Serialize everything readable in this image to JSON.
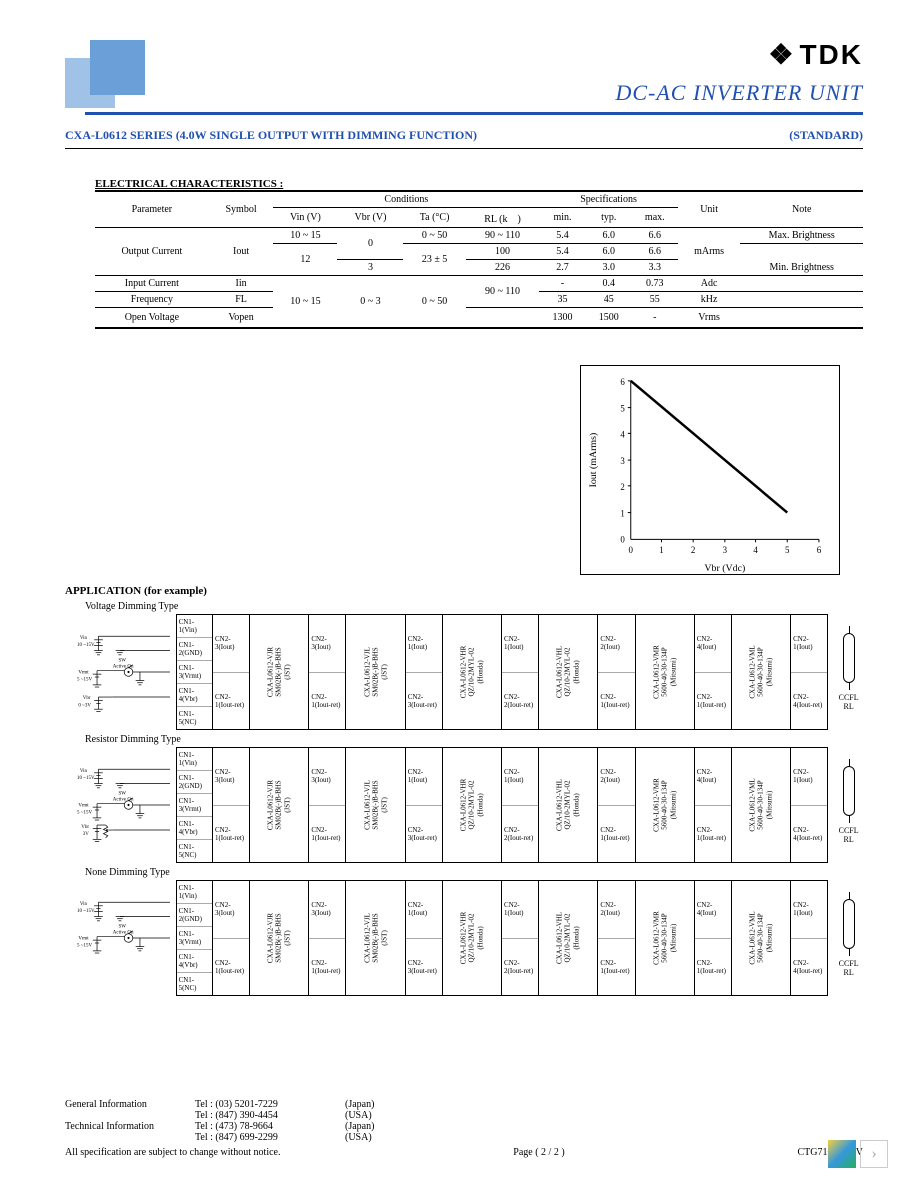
{
  "brand": "TDK",
  "main_title": "DC-AC INVERTER UNIT",
  "series_title": "CXA-L0612 SERIES (4.0W SINGLE OUTPUT WITH DIMMING FUNCTION)",
  "standard_label": "(STANDARD)",
  "elec_heading": "ELECTRICAL CHARACTERISTICS :",
  "table_headers": {
    "parameter": "Parameter",
    "symbol": "Symbol",
    "conditions": "Conditions",
    "specifications": "Specifications",
    "unit": "Unit",
    "note": "Note",
    "vin": "Vin (V)",
    "vbr": "Vbr (V)",
    "ta": "Ta (°C)",
    "rl": "RL (k　)",
    "min": "min.",
    "typ": "typ.",
    "max": "max."
  },
  "rows": [
    {
      "param": "Output Current",
      "sym": "Iout",
      "vin": "10 ~ 15",
      "vbr": "0",
      "ta": "0 ~ 50",
      "rl": "90 ~ 110",
      "min": "5.4",
      "typ": "6.0",
      "max": "6.6",
      "unit": "mArms",
      "note": "Max. Brightness"
    },
    {
      "param": "",
      "sym": "",
      "vin": "12",
      "vbr": "",
      "ta": "23 ± 5",
      "rl": "100",
      "min": "5.4",
      "typ": "6.0",
      "max": "6.6",
      "unit": "",
      "note": ""
    },
    {
      "param": "",
      "sym": "",
      "vin": "",
      "vbr": "3",
      "ta": "",
      "rl": "226",
      "min": "2.7",
      "typ": "3.0",
      "max": "3.3",
      "unit": "",
      "note": "Min. Brightness"
    },
    {
      "param": "Input Current",
      "sym": "Iin",
      "vin": "",
      "vbr": "",
      "ta": "",
      "rl": "",
      "min": "-",
      "typ": "0.4",
      "max": "0.73",
      "unit": "Adc",
      "note": ""
    },
    {
      "param": "Frequency",
      "sym": "FL",
      "vin": "10 ~ 15",
      "vbr": "0 ~ 3",
      "ta": "0 ~ 50",
      "rl": "90 ~ 110",
      "min": "35",
      "typ": "45",
      "max": "55",
      "unit": "kHz",
      "note": ""
    },
    {
      "param": "Open Voltage",
      "sym": "Vopen",
      "vin": "",
      "vbr": "",
      "ta": "",
      "rl": "　",
      "min": "1300",
      "typ": "1500",
      "max": "-",
      "unit": "Vrms",
      "note": ""
    }
  ],
  "chart": {
    "xlabel": "Vbr (Vdc)",
    "ylabel": "Iout (mArms)",
    "xlim": [
      0,
      6
    ],
    "ylim": [
      0,
      6
    ],
    "xticks": [
      0,
      1,
      2,
      3,
      4,
      5,
      6
    ],
    "yticks": [
      1,
      2,
      3,
      4,
      5,
      6
    ],
    "line": {
      "x": [
        0,
        5
      ],
      "y": [
        6,
        1
      ]
    },
    "line_color": "#000000",
    "line_width": 2.5,
    "axis_color": "#000000",
    "tick_fontsize": 9,
    "label_fontsize": 10
  },
  "app_heading": "APPLICATION (for example)",
  "dimming_types": [
    "Voltage Dimming Type",
    "Resistor Dimming Type",
    "None Dimming Type"
  ],
  "circuit_labels": {
    "vin": "Vin",
    "vin_range": "10 ~15V",
    "sw": "SW",
    "active": "Active On",
    "vrmt": "Vrmt",
    "vrmt_range": "5 ~15V",
    "vbr": "Vbr",
    "vbr_range": "0 ~3V",
    "vbr_fixed": "3V"
  },
  "conn_in_pins": [
    "CN1-1(Vin)",
    "CN1-2(GND)",
    "CN1-3(Vrmt)",
    "CN1-4(Vbr)",
    "CN1-5(NC)"
  ],
  "conn_out_top": "CN2-3(Iout)",
  "conn_out_bot": "CN2-1(Iout-ret)",
  "models": [
    {
      "name": "CXA-L0612-VJR",
      "conn": "SM02B(-)B-BHS",
      "mfr": "(JST)",
      "out_top": "CN2-3(Iout)",
      "out_bot": "CN2-1(Iout-ret)"
    },
    {
      "name": "CXA-L0612-VJL",
      "conn": "SM02B(-)B-BHS",
      "mfr": "(JST)",
      "out_top": "CN2-1(Iout)",
      "out_bot": "CN2-3(Iout-ret)"
    },
    {
      "name": "CXA-L0612-VHR",
      "conn": "QZ/10-2MYL-02",
      "mfr": "(Honda)",
      "out_top": "CN2-1(Iout)",
      "out_bot": "CN2-2(Iout-ret)"
    },
    {
      "name": "CXA-L0612-VHL",
      "conn": "QZ/10-2MYL-02",
      "mfr": "(Honda)",
      "out_top": "CN2-2(Iout)",
      "out_bot": "CN2-1(Iout-ret)"
    },
    {
      "name": "CXA-L0612-VMR",
      "conn": "5600-40-30-134P",
      "mfr": "(Mitsumi)",
      "out_top": "CN2-4(Iout)",
      "out_bot": "CN2-1(Iout-ret)"
    },
    {
      "name": "CXA-L0612-VML",
      "conn": "5600-40-30-134P",
      "mfr": "(Mitsumi)",
      "out_top": "CN2-1(Iout)",
      "out_bot": "CN2-4(Iout-ret)"
    }
  ],
  "ccfl_label": "CCFL",
  "rl_label": "RL",
  "footer": {
    "general": "General Information",
    "technical": "Technical Information",
    "tels": [
      {
        "num": "Tel : (03) 5201-7229",
        "loc": "(Japan)"
      },
      {
        "num": "Tel : (847) 390-4454",
        "loc": "(USA)"
      },
      {
        "num": "Tel : (473) 78-9664",
        "loc": "(Japan)"
      },
      {
        "num": "Tel : (847) 699-2299",
        "loc": "(USA)"
      }
    ],
    "disclaimer": "All specification are subject to change without notice.",
    "page": "Page ( 2 / 2 )",
    "doc": "CTG7100003-V"
  },
  "colors": {
    "blue": "#2050b0",
    "lightblue": "#9fc2e6",
    "midblue": "#6b9fd8"
  }
}
